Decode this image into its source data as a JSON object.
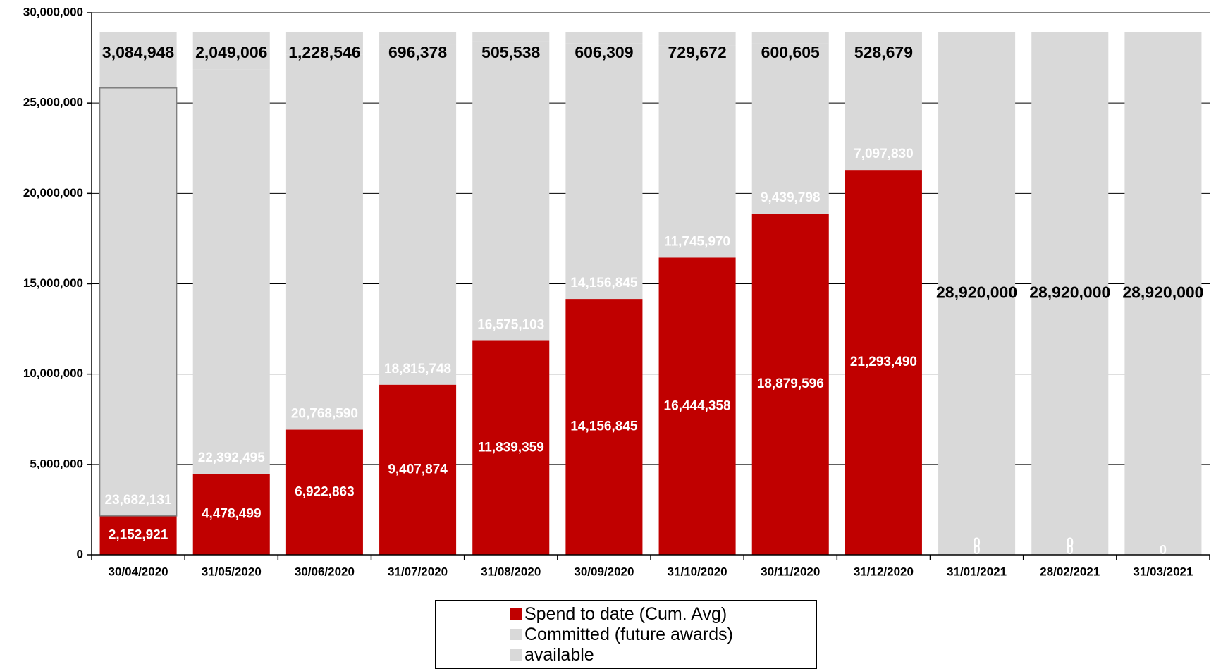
{
  "chart_data": {
    "type": "bar",
    "stacked": true,
    "categories": [
      "30/04/2020",
      "31/05/2020",
      "30/06/2020",
      "31/07/2020",
      "31/08/2020",
      "30/09/2020",
      "31/10/2020",
      "30/11/2020",
      "31/12/2020",
      "31/01/2021",
      "28/02/2021",
      "31/03/2021"
    ],
    "series": [
      {
        "name": "Spend to date (Cum. Avg)",
        "color": "#c00000",
        "values": [
          2152921,
          4478499,
          6922863,
          9407874,
          11839359,
          14156845,
          16444358,
          18879596,
          21293490,
          0,
          0,
          0
        ],
        "labels": [
          "2,152,921",
          "4,478,499",
          "6,922,863",
          "9,407,874",
          "11,839,359",
          "14,156,845",
          "16,444,358",
          "18,879,596",
          "21,293,490",
          "0",
          "0",
          "0"
        ]
      },
      {
        "name": "Committed (future awards)",
        "color": "#d9d9d9",
        "values": [
          23682131,
          22392495,
          20768590,
          18815748,
          16575103,
          14156845,
          11745970,
          9439798,
          7097830,
          0,
          0,
          0
        ],
        "labels": [
          "23,682,131",
          "22,392,495",
          "20,768,590",
          "18,815,748",
          "16,575,103",
          "14,156,845",
          "11,745,970",
          "9,439,798",
          "7,097,830",
          "0",
          "0",
          ""
        ]
      },
      {
        "name": "available",
        "color": "#d9d9d9",
        "values": [
          3084948,
          2049006,
          1228546,
          696378,
          505538,
          606309,
          729672,
          600605,
          528679,
          28920000,
          28920000,
          28920000
        ],
        "labels": [
          "3,084,948",
          "2,049,006",
          "1,228,546",
          "696,378",
          "505,538",
          "606,309",
          "729,672",
          "600,605",
          "528,679",
          "28,920,000",
          "28,920,000",
          "28,920,000"
        ]
      }
    ],
    "ylim": [
      0,
      30000000
    ],
    "yticks": [
      0,
      5000000,
      10000000,
      15000000,
      20000000,
      25000000,
      30000000
    ],
    "ytick_labels": [
      "0",
      "5,000,000",
      "10,000,000",
      "15,000,000",
      "20,000,000",
      "25,000,000",
      "30,000,000"
    ],
    "grid": "horizontal",
    "legend_position": "bottom",
    "title": "",
    "xlabel": "",
    "ylabel": ""
  }
}
